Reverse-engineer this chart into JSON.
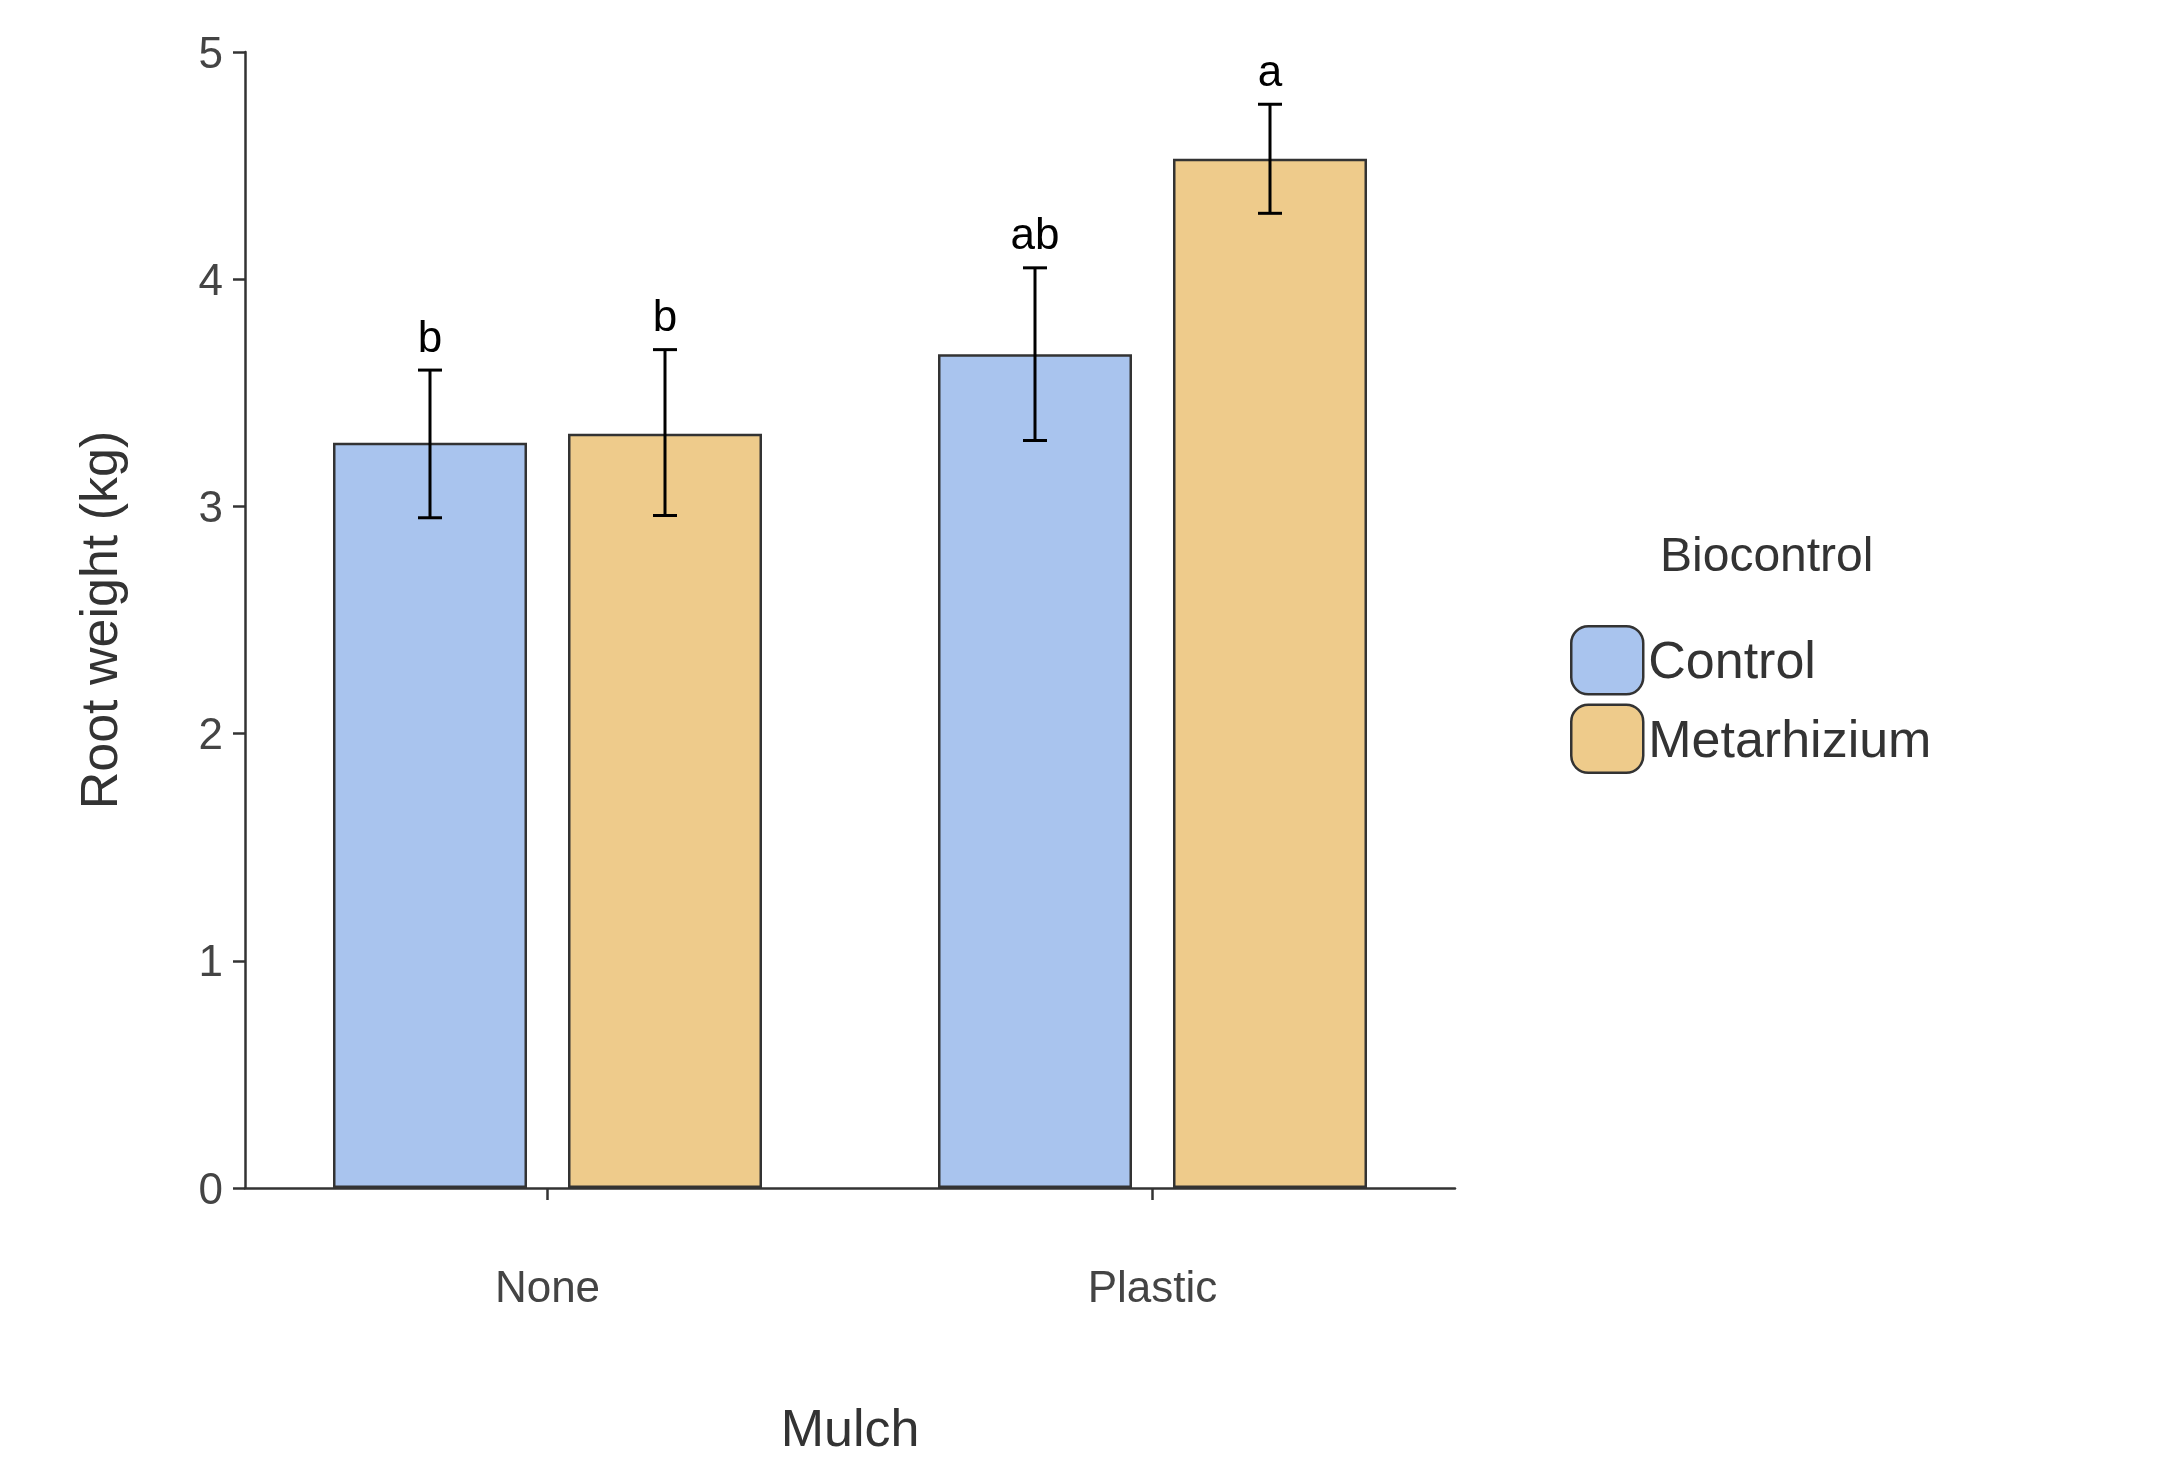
{
  "chart_data": {
    "type": "bar",
    "xlabel": "Mulch",
    "ylabel": "Root weight (kg)",
    "legend_title": "Biocontrol",
    "categories": [
      "None",
      "Plastic"
    ],
    "series": [
      {
        "name": "Control",
        "color": "#a9c4ee",
        "values": [
          3.28,
          3.67
        ],
        "errors": [
          [
            2.95,
            3.6
          ],
          [
            3.29,
            4.05
          ]
        ],
        "value_labels": [
          "b",
          "ab"
        ]
      },
      {
        "name": "Metarhizium",
        "color": "#eecb8b",
        "values": [
          3.32,
          4.53
        ],
        "errors": [
          [
            2.96,
            3.69
          ],
          [
            4.29,
            4.77
          ]
        ],
        "value_labels": [
          "b",
          "a"
        ]
      }
    ],
    "ylim": [
      0,
      5
    ],
    "yticks": [
      0,
      1,
      2,
      3,
      4,
      5
    ],
    "grid": false,
    "legend": "right"
  }
}
